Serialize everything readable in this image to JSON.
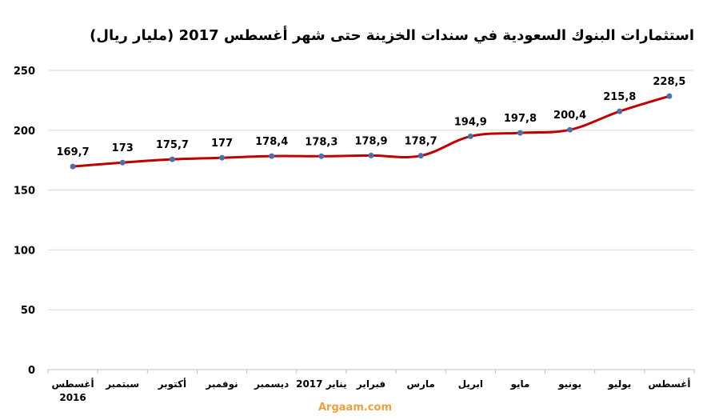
{
  "chart_data": {
    "type": "line",
    "title": "استثمارات البنوك السعودية في سندات الخزينة حتى شهر أغسطس 2017  (مليار ريال)",
    "categories": [
      "أغسطس 2016",
      "سبتمبر",
      "أكتوبر",
      "نوفمبر",
      "ديسمبر",
      "يناير 2017",
      "فبراير",
      "مارس",
      "ابريل",
      "مايو",
      "يونيو",
      "يوليو",
      "أغسطس"
    ],
    "category_lines": [
      [
        "أغسطس",
        "2016"
      ],
      [
        "سبتمبر"
      ],
      [
        "أكتوبر"
      ],
      [
        "نوفمبر"
      ],
      [
        "ديسمبر"
      ],
      [
        "يناير 2017"
      ],
      [
        "فبراير"
      ],
      [
        "مارس"
      ],
      [
        "ابريل"
      ],
      [
        "مايو"
      ],
      [
        "يونيو"
      ],
      [
        "يوليو"
      ],
      [
        "أغسطس"
      ]
    ],
    "values": [
      169.7,
      173,
      175.7,
      177,
      178.4,
      178.3,
      178.9,
      178.7,
      194.9,
      197.8,
      200.4,
      215.8,
      228.5
    ],
    "value_labels": [
      "169,7",
      "173",
      "175,7",
      "177",
      "178,4",
      "178,3",
      "178,9",
      "178,7",
      "194,9",
      "197,8",
      "200,4",
      "215,8",
      "228,5"
    ],
    "ylim": [
      0,
      250
    ],
    "yticks": [
      0,
      50,
      100,
      150,
      200,
      250
    ],
    "xlabel": "",
    "ylabel": "",
    "grid": true,
    "line_color": "#c00000",
    "marker_color": "#4f6fa8"
  },
  "watermark": "Argaam.com"
}
